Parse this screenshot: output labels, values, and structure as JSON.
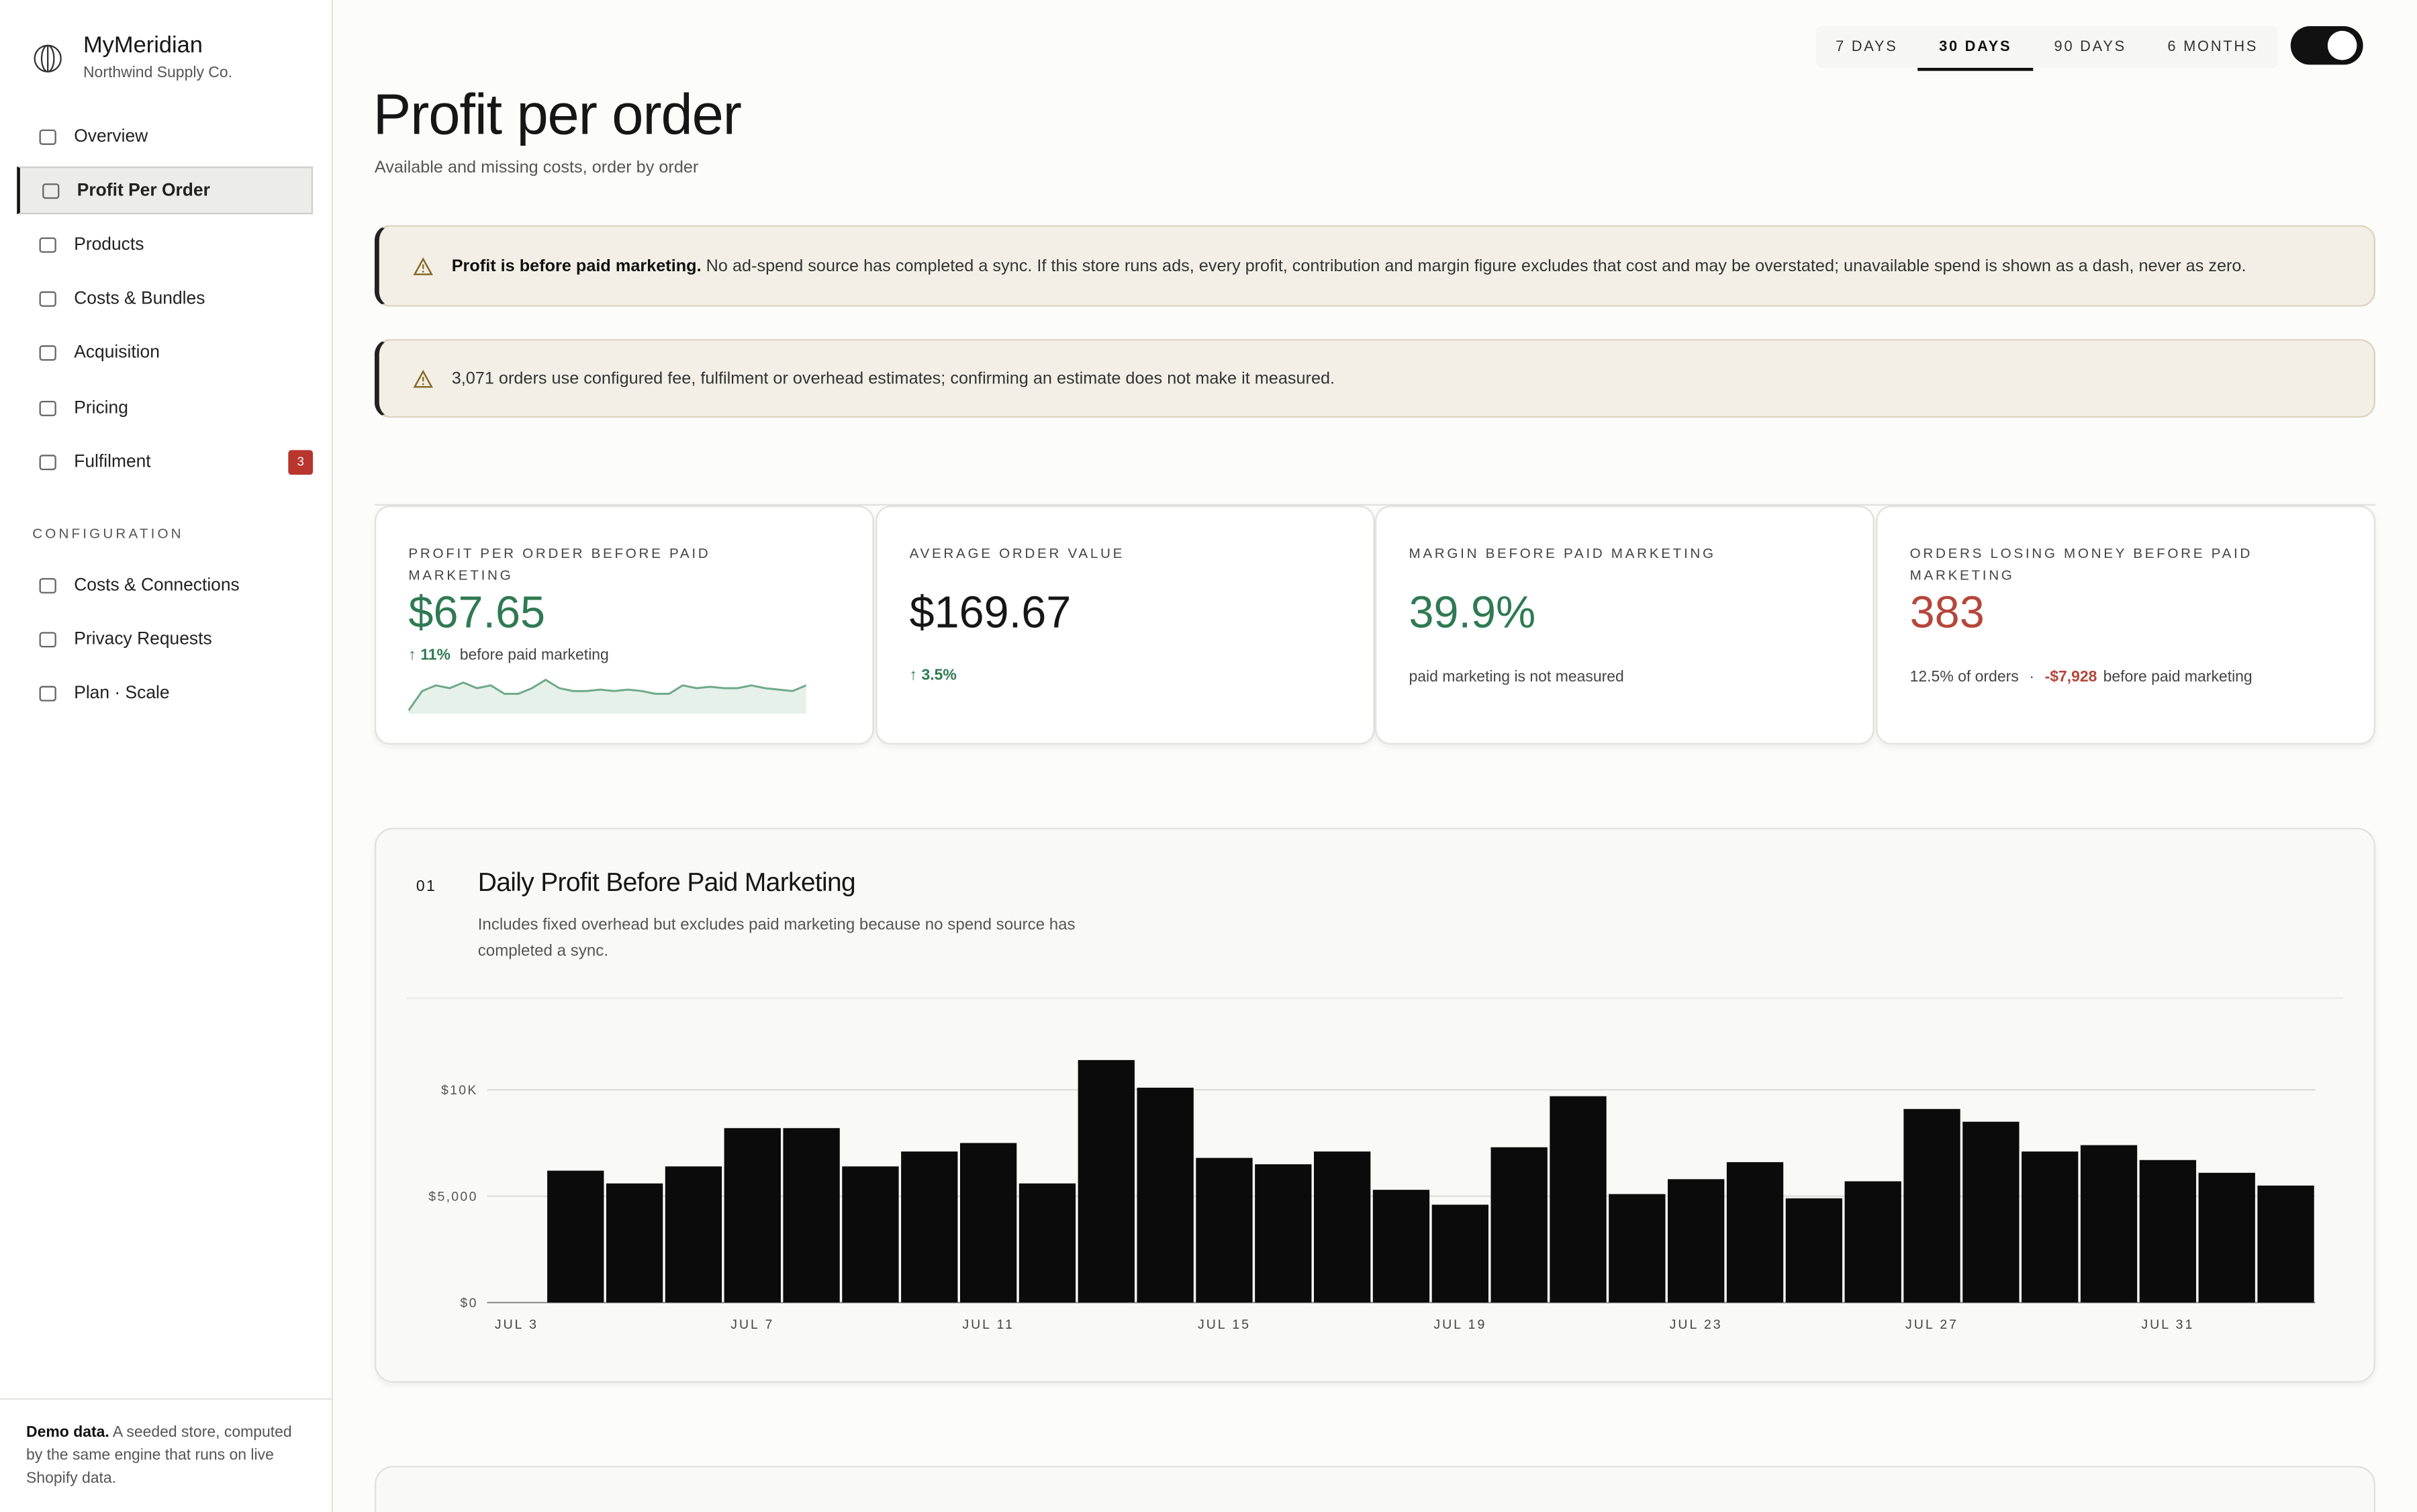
{
  "sidebar": {
    "brand": "MyMeridian",
    "store": "Northwind Supply Co.",
    "nav": [
      {
        "label": "Overview"
      },
      {
        "label": "Profit Per Order",
        "active": true
      },
      {
        "label": "Products"
      },
      {
        "label": "Costs & Bundles"
      },
      {
        "label": "Acquisition"
      },
      {
        "label": "Pricing"
      },
      {
        "label": "Fulfilment",
        "badge": 3
      }
    ],
    "config_heading": "CONFIGURATION",
    "config_nav": [
      {
        "label": "Costs & Connections"
      },
      {
        "label": "Privacy Requests"
      },
      {
        "label": "Plan · Scale"
      }
    ],
    "footer_bold": "Demo data.",
    "footer_text": "A seeded store, computed by the same engine that runs on live Shopify data."
  },
  "ranges": [
    "7 DAYS",
    "30 DAYS",
    "90 DAYS",
    "6 MONTHS"
  ],
  "active_range": 1,
  "header": {
    "title": "Profit per order",
    "subtitle": "Available and missing costs, order by order"
  },
  "alerts": [
    {
      "bold": "Profit is before paid marketing.",
      "text": "No ad-spend source has completed a sync. If this store runs ads, every profit, contribution and margin figure excludes that cost and may be overstated; unavailable spend is shown as a dash, never as zero."
    },
    {
      "text": "3,071 orders use configured fee, fulfilment or overhead estimates; confirming an estimate does not make it measured."
    }
  ],
  "kpis": [
    {
      "label": "PROFIT PER ORDER BEFORE PAID MARKETING",
      "value": "$67.65",
      "delta": "11%",
      "note": "before paid marketing",
      "sparkline": {
        "color": "#6fa98a",
        "values": [
          2,
          9,
          11,
          10,
          12,
          10,
          11,
          8,
          8,
          10,
          13,
          10,
          9,
          9,
          9.5,
          9,
          9.5,
          9,
          8,
          8,
          11,
          10,
          10.5,
          10,
          10,
          11,
          10,
          9.5,
          9,
          11
        ]
      }
    },
    {
      "label": "AVERAGE ORDER VALUE",
      "value": "$169.67",
      "delta": "3.5%"
    },
    {
      "label": "MARGIN BEFORE PAID MARKETING",
      "value": "39.9%",
      "note": "paid marketing is not measured"
    },
    {
      "label": "ORDERS LOSING MONEY BEFORE PAID MARKETING",
      "value": "383",
      "note_pre": "12.5% of orders",
      "note_sep": "·",
      "note_loss": "-$7,928",
      "note": "before paid marketing"
    }
  ],
  "section": {
    "number": "01",
    "title": "Daily Profit Before Paid Marketing",
    "description": "Includes fixed overhead but excludes paid marketing because no spend source has completed a sync."
  },
  "chart_data": {
    "type": "bar",
    "categories": [
      "JUL 3",
      null,
      null,
      null,
      "JUL 7",
      null,
      null,
      null,
      "JUL 11",
      null,
      null,
      null,
      "JUL 15",
      null,
      null,
      null,
      "JUL 19",
      null,
      null,
      null,
      "JUL 23",
      null,
      null,
      null,
      "JUL 27",
      null,
      null,
      null,
      "JUL 31",
      null,
      null
    ],
    "values": [
      null,
      6200,
      5600,
      6400,
      8200,
      8200,
      6400,
      7100,
      7500,
      5600,
      11400,
      10100,
      6800,
      6500,
      7100,
      5300,
      4600,
      7300,
      9700,
      5100,
      5800,
      6600,
      4900,
      5700,
      9100,
      8500,
      7100,
      7400,
      6700,
      6100,
      5500
    ],
    "color": "#0b0b0b",
    "ylim": [
      0,
      13000
    ],
    "yticks": [
      {
        "value": 0,
        "label": "$0"
      },
      {
        "value": 5000,
        "label": "$5,000"
      },
      {
        "value": 10000,
        "label": "$10K"
      }
    ],
    "grid": true
  }
}
